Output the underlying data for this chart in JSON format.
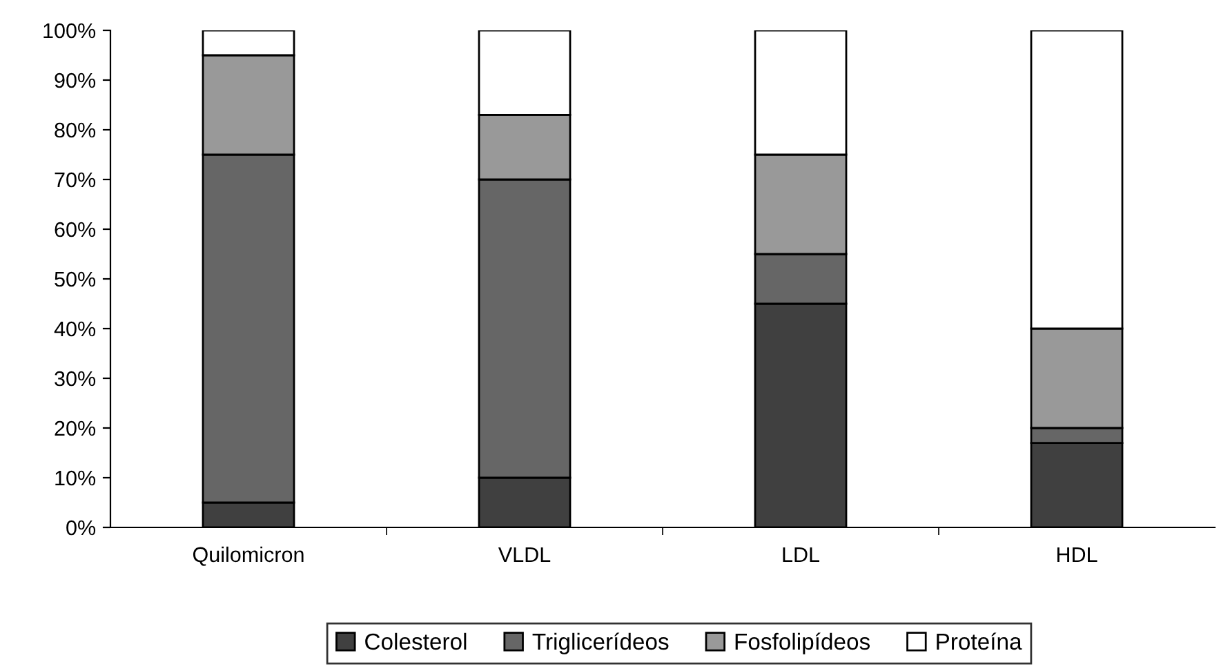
{
  "chart_data": {
    "type": "bar",
    "stacked": true,
    "categories": [
      "Quilomicron",
      "VLDL",
      "LDL",
      "HDL"
    ],
    "series": [
      {
        "name": "Colesterol",
        "color": "#404040",
        "values": [
          5,
          10,
          45,
          17
        ]
      },
      {
        "name": "Triglicerídeos",
        "color": "#666666",
        "values": [
          70,
          60,
          10,
          3
        ]
      },
      {
        "name": "Fosfolipídeos",
        "color": "#999999",
        "values": [
          20,
          13,
          20,
          20
        ]
      },
      {
        "name": "Proteína",
        "color": "#ffffff",
        "values": [
          5,
          17,
          25,
          60
        ]
      }
    ],
    "ylim": [
      0,
      100
    ],
    "yticks": [
      {
        "value": 0,
        "label": "0%"
      },
      {
        "value": 10,
        "label": "10%"
      },
      {
        "value": 20,
        "label": "20%"
      },
      {
        "value": 30,
        "label": "30%"
      },
      {
        "value": 40,
        "label": "40%"
      },
      {
        "value": 50,
        "label": "50%"
      },
      {
        "value": 60,
        "label": "60%"
      },
      {
        "value": 70,
        "label": "70%"
      },
      {
        "value": 80,
        "label": "80%"
      },
      {
        "value": 90,
        "label": "90%"
      },
      {
        "value": 100,
        "label": "100%"
      }
    ],
    "grid": false,
    "legend": "bottom"
  }
}
